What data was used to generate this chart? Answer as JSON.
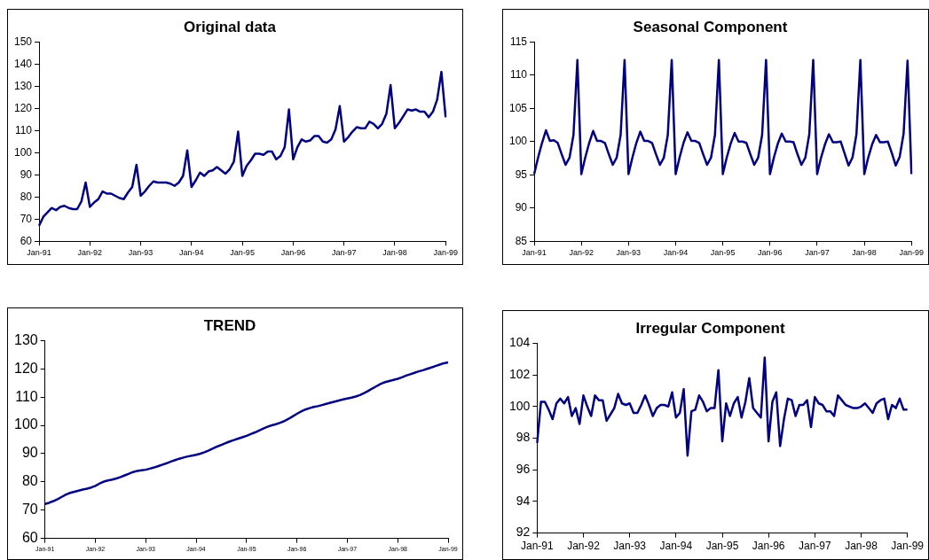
{
  "chart_data": [
    {
      "type": "line",
      "title": "Original data",
      "categories": [
        "Jan-91",
        null,
        null,
        null,
        null,
        null,
        null,
        null,
        null,
        null,
        null,
        null,
        "Jan-92",
        null,
        null,
        null,
        null,
        null,
        null,
        null,
        null,
        null,
        null,
        null,
        "Jan-93",
        null,
        null,
        null,
        null,
        null,
        null,
        null,
        null,
        null,
        null,
        null,
        "Jan-94",
        null,
        null,
        null,
        null,
        null,
        null,
        null,
        null,
        null,
        null,
        null,
        "Jan-95",
        null,
        null,
        null,
        null,
        null,
        null,
        null,
        null,
        null,
        null,
        null,
        "Jan-96",
        null,
        null,
        null,
        null,
        null,
        null,
        null,
        null,
        null,
        null,
        null,
        "Jan-97",
        null,
        null,
        null,
        null,
        null,
        null,
        null,
        null,
        null,
        null,
        null,
        "Jan-98",
        null,
        null,
        null,
        null,
        null,
        null,
        null,
        null,
        null,
        null,
        null,
        "Jan-99"
      ],
      "series": [
        {
          "color": "#000080",
          "values": [
            67,
            71,
            73,
            75,
            74,
            75.5,
            76,
            75,
            74.5,
            74.5,
            78,
            86.5,
            75.5,
            77.5,
            79,
            82.5,
            81.5,
            81.5,
            80.5,
            79.5,
            79,
            82,
            84.5,
            94.5,
            80.5,
            82.5,
            85,
            87,
            86.5,
            86.5,
            86.5,
            86,
            85,
            86.5,
            89.5,
            101,
            84.5,
            87.5,
            91,
            89.5,
            91.5,
            92,
            93.5,
            92,
            90.5,
            92.5,
            96,
            109.5,
            89.5,
            94,
            96.5,
            99.5,
            99.5,
            99,
            100.5,
            100.5,
            97,
            98.5,
            102.5,
            119.5,
            97,
            102.5,
            106,
            105,
            105.5,
            107.5,
            107.5,
            105,
            104.5,
            106,
            110.5,
            121,
            105,
            107,
            109.5,
            111.5,
            111,
            111,
            114,
            113,
            111,
            113,
            117.5,
            130.5,
            111,
            113.5,
            116.5,
            119.5,
            119,
            119.5,
            118.5,
            118.5,
            116,
            118.5,
            124,
            136.5,
            116
          ]
        }
      ],
      "ylim": [
        60,
        150
      ],
      "yticks": [
        60,
        70,
        80,
        90,
        100,
        110,
        120,
        130,
        140,
        150
      ],
      "grid": false,
      "legend": false
    },
    {
      "type": "line",
      "title": "Seasonal Component",
      "categories": [
        "Jan-91",
        null,
        null,
        null,
        null,
        null,
        null,
        null,
        null,
        null,
        null,
        null,
        "Jan-92",
        null,
        null,
        null,
        null,
        null,
        null,
        null,
        null,
        null,
        null,
        null,
        "Jan-93",
        null,
        null,
        null,
        null,
        null,
        null,
        null,
        null,
        null,
        null,
        null,
        "Jan-94",
        null,
        null,
        null,
        null,
        null,
        null,
        null,
        null,
        null,
        null,
        null,
        "Jan-95",
        null,
        null,
        null,
        null,
        null,
        null,
        null,
        null,
        null,
        null,
        null,
        "Jan-96",
        null,
        null,
        null,
        null,
        null,
        null,
        null,
        null,
        null,
        null,
        null,
        "Jan-97",
        null,
        null,
        null,
        null,
        null,
        null,
        null,
        null,
        null,
        null,
        null,
        "Jan-98",
        null,
        null,
        null,
        null,
        null,
        null,
        null,
        null,
        null,
        null,
        null,
        "Jan-99"
      ],
      "series": [
        {
          "color": "#000080",
          "values": [
            95.1,
            97.6,
            99.8,
            101.7,
            100.1,
            100.2,
            99.8,
            98.1,
            96.5,
            97.6,
            101,
            112.3,
            95.1,
            97.6,
            99.8,
            101.6,
            100.1,
            100.1,
            99.8,
            98.1,
            96.5,
            97.6,
            101,
            112.3,
            95.1,
            97.6,
            99.8,
            101.5,
            100.1,
            100.1,
            99.8,
            98.1,
            96.5,
            97.6,
            101,
            112.3,
            95.1,
            97.6,
            99.8,
            101.4,
            100.1,
            100.1,
            99.8,
            98.1,
            96.5,
            97.6,
            101,
            112.3,
            95.1,
            97.6,
            99.7,
            101.3,
            100,
            100,
            99.8,
            98.1,
            96.5,
            97.6,
            101,
            112.3,
            95.1,
            97.6,
            99.7,
            101.2,
            100,
            100,
            99.9,
            98.1,
            96.5,
            97.6,
            101.1,
            112.3,
            95.1,
            97.6,
            99.6,
            101.1,
            99.9,
            99.9,
            100,
            98.2,
            96.4,
            97.6,
            101.1,
            112.3,
            95.1,
            97.6,
            99.6,
            101,
            99.9,
            99.9,
            100,
            98.3,
            96.4,
            97.7,
            101.2,
            112.2,
            95.1
          ]
        }
      ],
      "ylim": [
        85,
        115
      ],
      "yticks": [
        85,
        90,
        95,
        100,
        105,
        110,
        115
      ],
      "grid": false,
      "legend": false
    },
    {
      "type": "line",
      "title": "TREND",
      "categories": [
        "Jan-91",
        null,
        null,
        null,
        null,
        null,
        null,
        null,
        null,
        null,
        null,
        null,
        "Jan-92",
        null,
        null,
        null,
        null,
        null,
        null,
        null,
        null,
        null,
        null,
        null,
        "Jan-93",
        null,
        null,
        null,
        null,
        null,
        null,
        null,
        null,
        null,
        null,
        null,
        "Jan-94",
        null,
        null,
        null,
        null,
        null,
        null,
        null,
        null,
        null,
        null,
        null,
        "Jan-95",
        null,
        null,
        null,
        null,
        null,
        null,
        null,
        null,
        null,
        null,
        null,
        "Jan-96",
        null,
        null,
        null,
        null,
        null,
        null,
        null,
        null,
        null,
        null,
        null,
        "Jan-97",
        null,
        null,
        null,
        null,
        null,
        null,
        null,
        null,
        null,
        null,
        null,
        "Jan-98",
        null,
        null,
        null,
        null,
        null,
        null,
        null,
        null,
        null,
        null,
        null,
        "Jan-99"
      ],
      "series": [
        {
          "color": "#000080",
          "values": [
            72.2,
            72.6,
            73.2,
            73.9,
            74.7,
            75.5,
            76.1,
            76.5,
            76.9,
            77.3,
            77.6,
            78,
            78.6,
            79.4,
            80.1,
            80.5,
            80.8,
            81.2,
            81.7,
            82.3,
            82.9,
            83.5,
            83.9,
            84.1,
            84.3,
            84.7,
            85.1,
            85.6,
            86.1,
            86.6,
            87.2,
            87.7,
            88.2,
            88.6,
            89,
            89.3,
            89.6,
            90,
            90.5,
            91.1,
            91.8,
            92.5,
            93.1,
            93.7,
            94.3,
            94.8,
            95.3,
            95.8,
            96.3,
            96.9,
            97.5,
            98.2,
            98.9,
            99.5,
            100,
            100.4,
            100.9,
            101.5,
            102.3,
            103.2,
            104.1,
            104.9,
            105.6,
            106.1,
            106.5,
            106.8,
            107.2,
            107.6,
            108,
            108.4,
            108.8,
            109.2,
            109.5,
            109.8,
            110.2,
            110.7,
            111.4,
            112.2,
            113.1,
            113.9,
            114.7,
            115.3,
            115.7,
            116.1,
            116.5,
            117,
            117.6,
            118.1,
            118.6,
            119.1,
            119.5,
            120,
            120.5,
            121,
            121.5,
            122,
            122.3
          ]
        }
      ],
      "ylim": [
        60,
        130
      ],
      "yticks": [
        60,
        70,
        80,
        90,
        100,
        110,
        120,
        130
      ],
      "grid": false,
      "legend": false
    },
    {
      "type": "line",
      "title": "Irregular Component",
      "categories": [
        "Jan-91",
        null,
        null,
        null,
        null,
        null,
        null,
        null,
        null,
        null,
        null,
        null,
        "Jan-92",
        null,
        null,
        null,
        null,
        null,
        null,
        null,
        null,
        null,
        null,
        null,
        "Jan-93",
        null,
        null,
        null,
        null,
        null,
        null,
        null,
        null,
        null,
        null,
        null,
        "Jan-94",
        null,
        null,
        null,
        null,
        null,
        null,
        null,
        null,
        null,
        null,
        null,
        "Jan-95",
        null,
        null,
        null,
        null,
        null,
        null,
        null,
        null,
        null,
        null,
        null,
        "Jan-96",
        null,
        null,
        null,
        null,
        null,
        null,
        null,
        null,
        null,
        null,
        null,
        "Jan-97",
        null,
        null,
        null,
        null,
        null,
        null,
        null,
        null,
        null,
        null,
        null,
        "Jan-98",
        null,
        null,
        null,
        null,
        null,
        null,
        null,
        null,
        null,
        null,
        null,
        "Jan-99"
      ],
      "series": [
        {
          "color": "#000080",
          "values": [
            97.7,
            100.3,
            100.3,
            99.8,
            99.2,
            100.2,
            100.5,
            100.2,
            100.6,
            99.4,
            99.9,
            98.9,
            100.7,
            100,
            99.4,
            100.7,
            100.4,
            100.4,
            99.1,
            99.5,
            99.9,
            100.8,
            100.2,
            100.1,
            100.2,
            99.6,
            99.6,
            100.1,
            100.7,
            100.1,
            99.4,
            99.9,
            100.1,
            100.1,
            100,
            100.9,
            99.3,
            99.6,
            101.1,
            96.9,
            99.7,
            99.8,
            100.7,
            100.3,
            99.7,
            99.9,
            99.9,
            102.3,
            97.8,
            100.2,
            99.4,
            100.2,
            100.6,
            99.3,
            100.3,
            101.8,
            99.9,
            99.6,
            99.3,
            103.1,
            97.8,
            100.3,
            100.9,
            97.5,
            99.2,
            100.5,
            100.4,
            99.4,
            100.1,
            100.1,
            100.4,
            98.7,
            100.6,
            100.2,
            100.1,
            99.7,
            99.7,
            99.4,
            100.7,
            100.4,
            100.1,
            100,
            99.9,
            99.9,
            100,
            100.2,
            99.9,
            99.6,
            100.2,
            100.4,
            100.5,
            99.2,
            100.1,
            99.9,
            100.5,
            99.8,
            99.8
          ]
        }
      ],
      "ylim": [
        92,
        104
      ],
      "yticks": [
        92,
        94,
        96,
        98,
        100,
        102,
        104
      ],
      "grid": false,
      "legend": false
    }
  ]
}
